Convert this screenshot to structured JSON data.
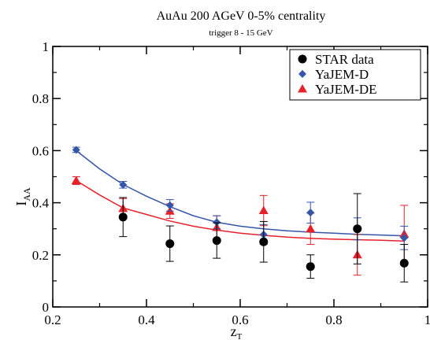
{
  "chart_data": {
    "type": "scatter",
    "title": "AuAu 200 AGeV 0-5% centrality",
    "subtitle": "trigger 8 - 15 GeV",
    "xlabel": "z",
    "xlabel_sub": "T",
    "ylabel": "I",
    "ylabel_sub": "AA",
    "xlim": [
      0.2,
      1.0
    ],
    "ylim": [
      0,
      1.0
    ],
    "xticks": [
      0.2,
      0.4,
      0.6,
      0.8,
      1.0
    ],
    "xtick_labels": [
      "0.2",
      "0.4",
      "0.6",
      "0.8",
      "1"
    ],
    "yticks": [
      0,
      0.2,
      0.4,
      0.6,
      0.8,
      1.0
    ],
    "ytick_labels": [
      "0",
      "0.2",
      "0.4",
      "0.6",
      "0.8",
      "1"
    ],
    "grid": false,
    "legend_position": "top-right",
    "series": [
      {
        "name": "STAR data",
        "marker": "circle",
        "color": "#000000",
        "x": [
          0.35,
          0.45,
          0.55,
          0.65,
          0.75,
          0.85,
          0.95
        ],
        "y": [
          0.345,
          0.243,
          0.255,
          0.25,
          0.155,
          0.3,
          0.168
        ],
        "err": [
          0.075,
          0.068,
          0.068,
          0.078,
          0.045,
          0.135,
          0.072
        ]
      },
      {
        "name": "YaJEM-D",
        "marker": "diamond",
        "color": "#3355aa",
        "x": [
          0.25,
          0.35,
          0.45,
          0.55,
          0.65,
          0.75,
          0.85,
          0.95
        ],
        "y": [
          0.603,
          0.469,
          0.39,
          0.325,
          0.278,
          0.362,
          0.3,
          0.265
        ],
        "err": [
          0.01,
          0.013,
          0.022,
          0.025,
          0.038,
          0.04,
          0.042,
          0.045
        ],
        "curve_x": [
          0.25,
          0.3,
          0.35,
          0.4,
          0.45,
          0.5,
          0.55,
          0.6,
          0.65,
          0.7,
          0.75,
          0.8,
          0.85,
          0.9,
          0.95
        ],
        "curve_y": [
          0.6,
          0.53,
          0.47,
          0.425,
          0.385,
          0.35,
          0.325,
          0.31,
          0.3,
          0.292,
          0.287,
          0.283,
          0.279,
          0.276,
          0.273
        ]
      },
      {
        "name": "YaJEM-DE",
        "marker": "triangle",
        "color": "#e8202a",
        "x": [
          0.25,
          0.35,
          0.45,
          0.55,
          0.65,
          0.75,
          0.85,
          0.95
        ],
        "y": [
          0.485,
          0.378,
          0.368,
          0.305,
          0.37,
          0.3,
          0.2,
          0.28
        ],
        "err": [
          0.015,
          0.038,
          0.028,
          0.045,
          0.058,
          0.06,
          0.078,
          0.11
        ],
        "curve_x": [
          0.25,
          0.3,
          0.35,
          0.4,
          0.45,
          0.5,
          0.55,
          0.6,
          0.65,
          0.7,
          0.75,
          0.8,
          0.85,
          0.9,
          0.95
        ],
        "curve_y": [
          0.485,
          0.43,
          0.38,
          0.355,
          0.33,
          0.31,
          0.295,
          0.283,
          0.275,
          0.268,
          0.263,
          0.26,
          0.258,
          0.256,
          0.253
        ]
      }
    ]
  }
}
